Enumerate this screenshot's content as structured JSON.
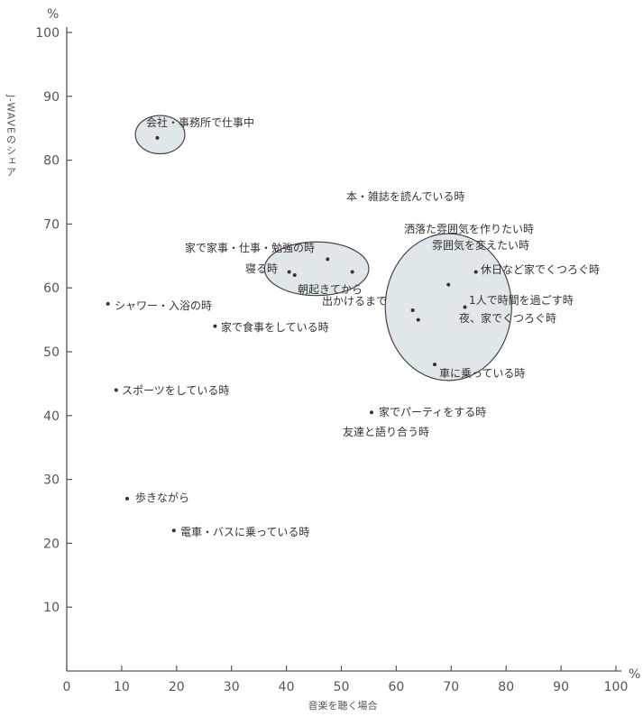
{
  "chart_data": {
    "type": "scatter",
    "title": "",
    "xlabel": "音楽を聴く場合",
    "ylabel": "J-WAVEのシェア",
    "x_unit": "%",
    "y_unit": "%",
    "xlim": [
      0,
      100
    ],
    "ylim": [
      0,
      100
    ],
    "x_ticks": [
      0,
      10,
      20,
      30,
      40,
      50,
      60,
      70,
      80,
      90,
      100
    ],
    "y_ticks": [
      10,
      20,
      30,
      40,
      50,
      60,
      70,
      80,
      90,
      100
    ],
    "grid": false,
    "points": [
      {
        "label": "会社・事務所で仕事中",
        "x": 16.5,
        "y": 83.5
      },
      {
        "label": "本・雑誌を読んでいる時",
        "x": null,
        "y": null
      },
      {
        "label": "家で家事・仕事・勉強の時",
        "x": 47.5,
        "y": 64.5
      },
      {
        "label": "寝る時",
        "x": 40.5,
        "y": 62.5
      },
      {
        "label": "朝起きてから",
        "x": 41.5,
        "y": 62.0
      },
      {
        "label": "出かけるまで",
        "x": 52.0,
        "y": 62.5
      },
      {
        "label": "洒落た雰囲気を作りたい時",
        "x": 69.5,
        "y": 60.5
      },
      {
        "label": "雰囲気を変えたい時",
        "x": 63.0,
        "y": 56.5
      },
      {
        "label": "休日など家でくつろぐ時",
        "x": 74.5,
        "y": 62.5
      },
      {
        "label": "1人で時間を過ごす時",
        "x": 72.5,
        "y": 57.0
      },
      {
        "label": "夜、家でくつろぐ時",
        "x": 64.0,
        "y": 55.0
      },
      {
        "label": "車に乗っている時",
        "x": 67.0,
        "y": 48.0
      },
      {
        "label": "シャワー・入浴の時",
        "x": 7.5,
        "y": 57.5
      },
      {
        "label": "家で食事をしている時",
        "x": 27.0,
        "y": 54.0
      },
      {
        "label": "スポーツをしている時",
        "x": 9.0,
        "y": 44.0
      },
      {
        "label": "家でパーティをする時",
        "x": 55.5,
        "y": 40.5
      },
      {
        "label": "友達と語り合う時",
        "x": null,
        "y": null
      },
      {
        "label": "歩きながら",
        "x": 11.0,
        "y": 27.0
      },
      {
        "label": "電車・バスに乗っている時",
        "x": 19.5,
        "y": 22.0
      }
    ],
    "clusters": [
      {
        "cx": 17,
        "cy": 84,
        "rx": 4.5,
        "ry": 3
      },
      {
        "cx": 45.5,
        "cy": 63,
        "rx": 9.5,
        "ry": 4.2
      },
      {
        "cx": 69.5,
        "cy": 57,
        "rx": 11.5,
        "ry": 11.5
      }
    ],
    "colors": {
      "axis": "#555555",
      "point": "#333333",
      "cluster_fill": "#dfe7ea",
      "cluster_stroke": "#444444",
      "text": "#3a3a3a"
    }
  }
}
